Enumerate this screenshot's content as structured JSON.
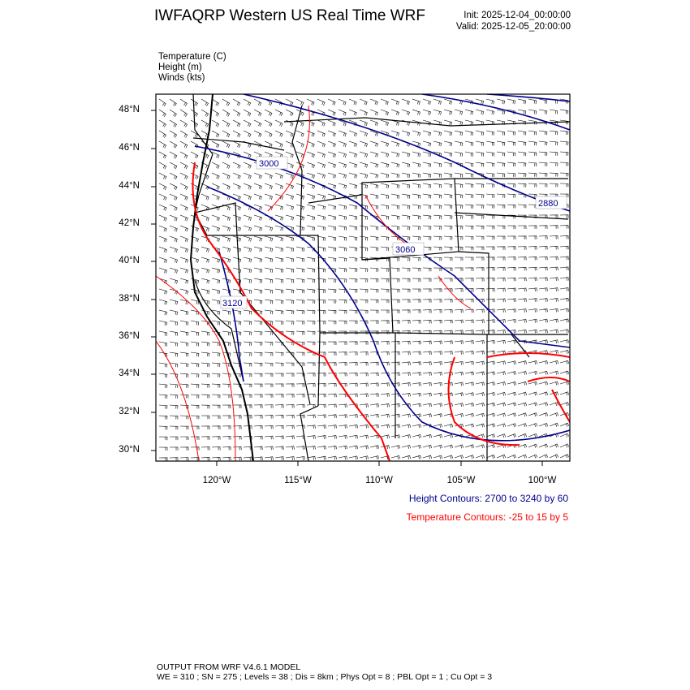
{
  "title": "IWFAQRP Western US Real Time WRF",
  "init": "Init: 2025-12-04_00:00:00",
  "valid": "Valid: 2025-12-05_20:00:00",
  "fields": [
    "Temperature   (C)",
    "Height   (m)",
    "Winds   (kts)"
  ],
  "lat_labels": [
    "48°N",
    "46°N",
    "44°N",
    "42°N",
    "40°N",
    "38°N",
    "36°N",
    "34°N",
    "32°N",
    "30°N"
  ],
  "lon_labels": [
    "120°W",
    "115°W",
    "110°W",
    "105°W",
    "100°W"
  ],
  "contour_labels": [
    "3000",
    "3060",
    "2880",
    "3120"
  ],
  "legend": {
    "height": "Height Contours: 2700 to 3240 by 60",
    "temperature": "Temperature Contours: -25 to 15 by 5"
  },
  "colors": {
    "height": "#00008b",
    "temperature": "#ff0000",
    "boundaries": "#000000"
  },
  "footer": {
    "line1": "OUTPUT FROM WRF V4.6.1 MODEL",
    "line2": "WE = 310 ; SN = 275 ; Levels = 38 ; Dis = 8km ; Phys Opt = 8 ; PBL Opt = 1 ; Cu Opt = 3"
  }
}
